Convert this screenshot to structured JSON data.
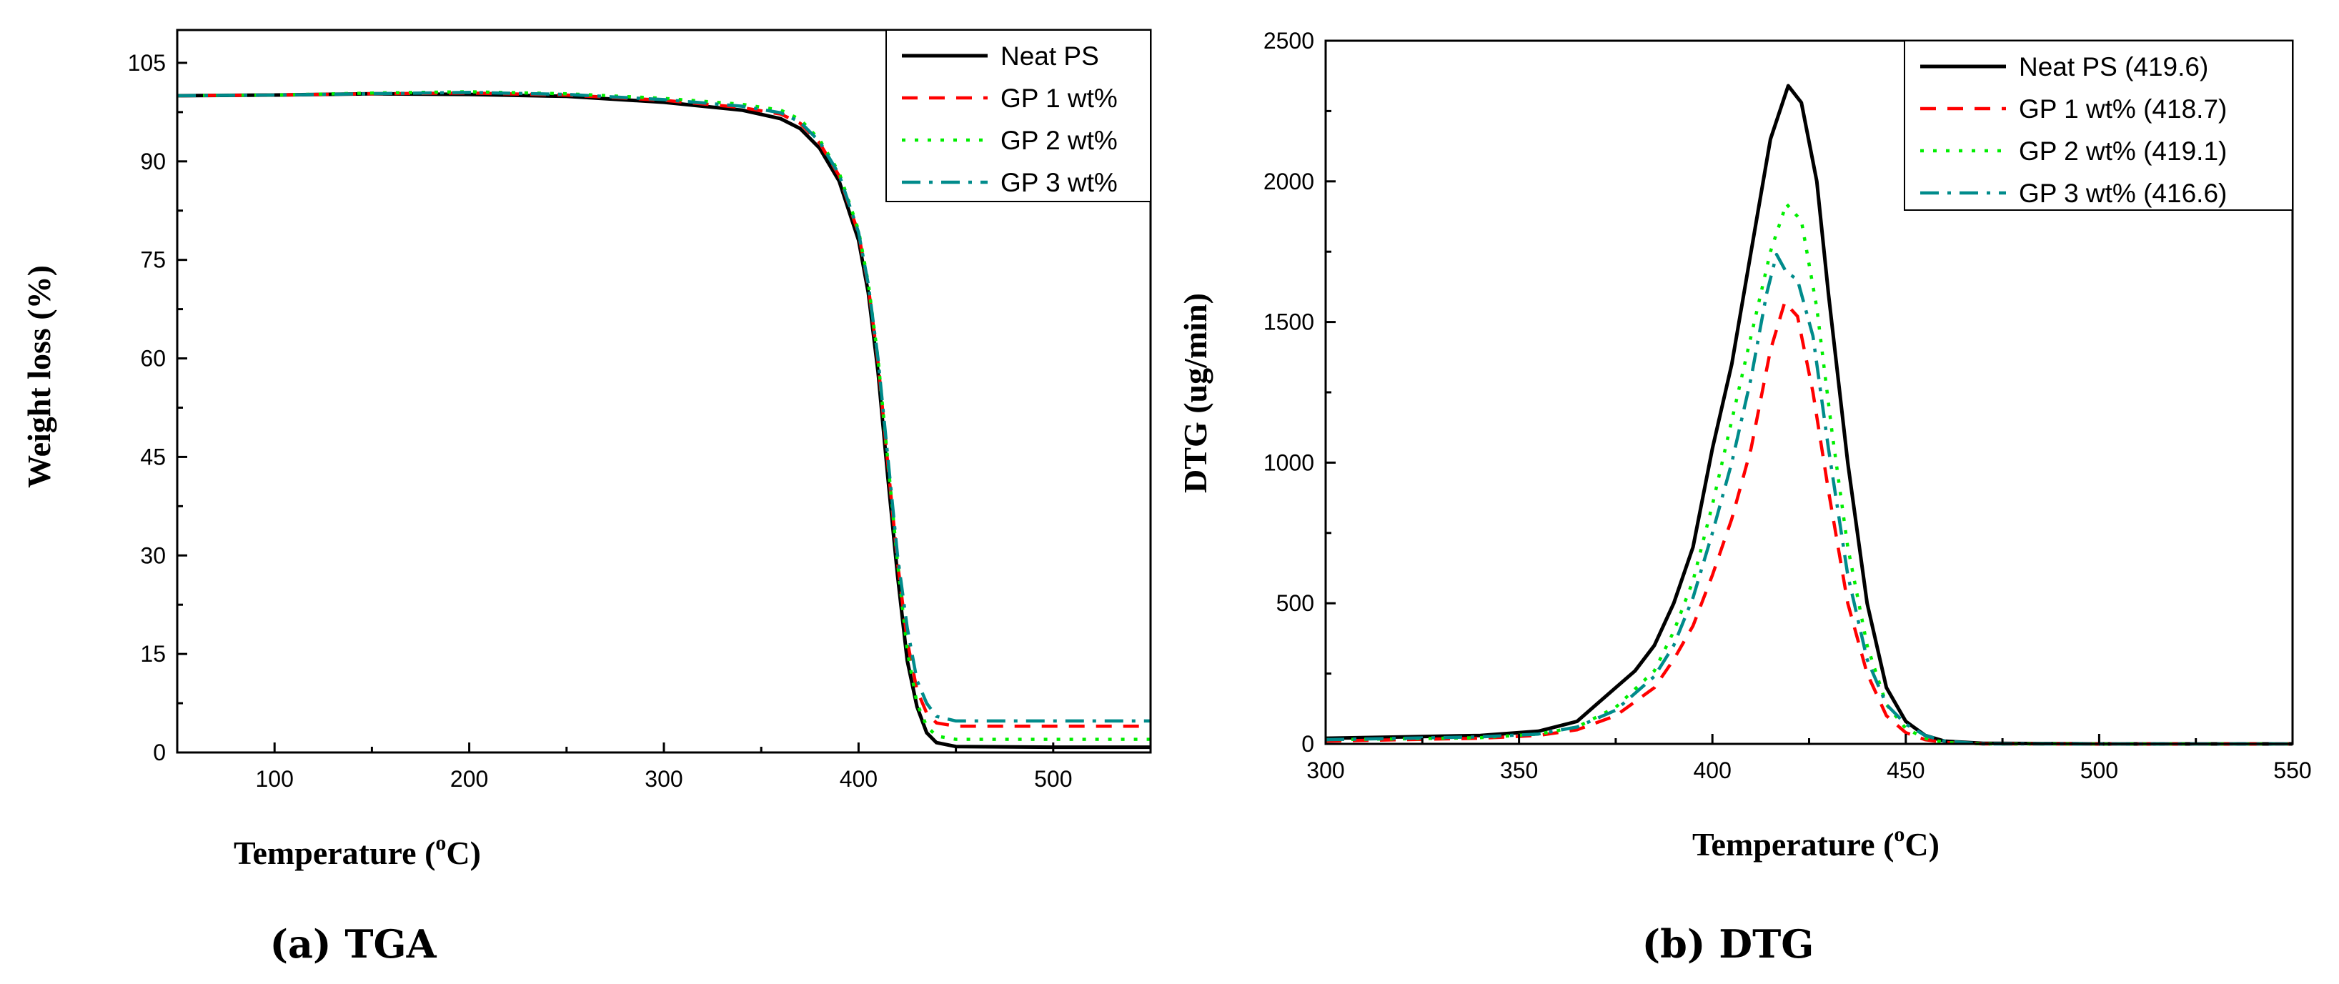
{
  "chart_data": [
    {
      "id": "tga",
      "type": "line",
      "caption": "(a) TGA",
      "xlabel_main": "Temperature (",
      "xlabel_sup": "o",
      "xlabel_end": "C)",
      "ylabel": "Weight loss (%)",
      "xlim": [
        50,
        550
      ],
      "ylim": [
        0,
        110
      ],
      "xticks": [
        100,
        200,
        300,
        400,
        500
      ],
      "yticks": [
        0,
        15,
        30,
        45,
        60,
        75,
        90,
        105
      ],
      "legend_position": "top-right",
      "series": [
        {
          "name": "Neat PS",
          "color": "#000000",
          "dash": "solid",
          "points": [
            [
              50,
              100
            ],
            [
              100,
              100.1
            ],
            [
              150,
              100.3
            ],
            [
              200,
              100.2
            ],
            [
              250,
              99.9
            ],
            [
              300,
              99.0
            ],
            [
              340,
              97.8
            ],
            [
              360,
              96.5
            ],
            [
              370,
              95.0
            ],
            [
              380,
              92.0
            ],
            [
              390,
              87.0
            ],
            [
              400,
              78.0
            ],
            [
              405,
              70.0
            ],
            [
              410,
              58.0
            ],
            [
              415,
              42.0
            ],
            [
              420,
              27.0
            ],
            [
              425,
              14.0
            ],
            [
              430,
              7.0
            ],
            [
              435,
              3.0
            ],
            [
              440,
              1.5
            ],
            [
              450,
              0.9
            ],
            [
              500,
              0.8
            ],
            [
              550,
              0.8
            ]
          ]
        },
        {
          "name": "GP 1 wt%",
          "color": "#ff0000",
          "dash": "dash",
          "points": [
            [
              50,
              100
            ],
            [
              100,
              100.1
            ],
            [
              150,
              100.3
            ],
            [
              200,
              100.4
            ],
            [
              250,
              100.1
            ],
            [
              300,
              99.3
            ],
            [
              340,
              98.2
            ],
            [
              360,
              97.2
            ],
            [
              370,
              95.8
            ],
            [
              380,
              92.8
            ],
            [
              390,
              87.8
            ],
            [
              400,
              79.0
            ],
            [
              405,
              71.0
            ],
            [
              410,
              59.5
            ],
            [
              415,
              44.0
            ],
            [
              420,
              29.0
            ],
            [
              425,
              17.0
            ],
            [
              430,
              9.5
            ],
            [
              435,
              6.0
            ],
            [
              440,
              4.5
            ],
            [
              450,
              4.0
            ],
            [
              500,
              4.0
            ],
            [
              550,
              4.0
            ]
          ]
        },
        {
          "name": "GP 2 wt%",
          "color": "#00ee00",
          "dash": "dot",
          "points": [
            [
              50,
              100
            ],
            [
              100,
              100.1
            ],
            [
              150,
              100.4
            ],
            [
              200,
              100.6
            ],
            [
              250,
              100.3
            ],
            [
              300,
              99.6
            ],
            [
              340,
              98.7
            ],
            [
              360,
              97.8
            ],
            [
              370,
              96.4
            ],
            [
              380,
              93.3
            ],
            [
              390,
              88.3
            ],
            [
              400,
              79.5
            ],
            [
              405,
              71.5
            ],
            [
              410,
              60.0
            ],
            [
              415,
              44.5
            ],
            [
              420,
              29.0
            ],
            [
              425,
              15.5
            ],
            [
              430,
              7.5
            ],
            [
              435,
              4.0
            ],
            [
              440,
              2.5
            ],
            [
              450,
              2.0
            ],
            [
              500,
              2.0
            ],
            [
              550,
              2.0
            ]
          ]
        },
        {
          "name": "GP 3 wt%",
          "color": "#008b8b",
          "dash": "dashdot",
          "points": [
            [
              50,
              100
            ],
            [
              100,
              100.1
            ],
            [
              150,
              100.3
            ],
            [
              200,
              100.5
            ],
            [
              250,
              100.2
            ],
            [
              300,
              99.4
            ],
            [
              340,
              98.4
            ],
            [
              360,
              97.4
            ],
            [
              370,
              96.0
            ],
            [
              380,
              93.0
            ],
            [
              390,
              88.0
            ],
            [
              400,
              79.2
            ],
            [
              405,
              71.3
            ],
            [
              410,
              60.0
            ],
            [
              415,
              45.0
            ],
            [
              420,
              30.0
            ],
            [
              425,
              19.0
            ],
            [
              430,
              11.0
            ],
            [
              435,
              7.5
            ],
            [
              440,
              5.5
            ],
            [
              450,
              4.8
            ],
            [
              500,
              4.8
            ],
            [
              550,
              4.8
            ]
          ]
        }
      ]
    },
    {
      "id": "dtg",
      "type": "line",
      "caption": "(b) DTG",
      "xlabel_main": "Temperature (",
      "xlabel_sup": "o",
      "xlabel_end": "C)",
      "ylabel": "DTG (ug/min)",
      "xlim": [
        300,
        550
      ],
      "ylim": [
        0,
        2500
      ],
      "xticks": [
        300,
        350,
        400,
        450,
        500,
        550
      ],
      "yticks": [
        0,
        500,
        1000,
        1500,
        2000,
        2500
      ],
      "legend_position": "top-right",
      "series": [
        {
          "name": "Neat PS (419.6)",
          "color": "#000000",
          "dash": "solid",
          "points": [
            [
              300,
              20
            ],
            [
              320,
              25
            ],
            [
              340,
              30
            ],
            [
              355,
              45
            ],
            [
              365,
              80
            ],
            [
              370,
              140
            ],
            [
              375,
              200
            ],
            [
              380,
              260
            ],
            [
              385,
              350
            ],
            [
              390,
              500
            ],
            [
              395,
              700
            ],
            [
              400,
              1050
            ],
            [
              405,
              1350
            ],
            [
              410,
              1750
            ],
            [
              415,
              2150
            ],
            [
              419.6,
              2340
            ],
            [
              423,
              2280
            ],
            [
              427,
              2000
            ],
            [
              430,
              1600
            ],
            [
              435,
              1000
            ],
            [
              440,
              500
            ],
            [
              445,
              200
            ],
            [
              450,
              80
            ],
            [
              455,
              30
            ],
            [
              460,
              10
            ],
            [
              470,
              2
            ],
            [
              500,
              0
            ],
            [
              550,
              0
            ]
          ]
        },
        {
          "name": "GP 1 wt%  (418.7)",
          "color": "#ff0000",
          "dash": "dash",
          "points": [
            [
              300,
              10
            ],
            [
              320,
              15
            ],
            [
              340,
              20
            ],
            [
              355,
              30
            ],
            [
              365,
              50
            ],
            [
              375,
              100
            ],
            [
              385,
              200
            ],
            [
              390,
              300
            ],
            [
              395,
              420
            ],
            [
              400,
              600
            ],
            [
              405,
              800
            ],
            [
              410,
              1050
            ],
            [
              415,
              1400
            ],
            [
              418.7,
              1570
            ],
            [
              422,
              1520
            ],
            [
              426,
              1250
            ],
            [
              430,
              900
            ],
            [
              435,
              500
            ],
            [
              440,
              250
            ],
            [
              445,
              100
            ],
            [
              450,
              40
            ],
            [
              455,
              15
            ],
            [
              460,
              5
            ],
            [
              470,
              0
            ],
            [
              550,
              0
            ]
          ]
        },
        {
          "name": "GP 2 wt%  (419.1)",
          "color": "#00ee00",
          "dash": "dot",
          "points": [
            [
              300,
              15
            ],
            [
              320,
              18
            ],
            [
              340,
              22
            ],
            [
              355,
              35
            ],
            [
              365,
              60
            ],
            [
              375,
              130
            ],
            [
              385,
              260
            ],
            [
              390,
              400
            ],
            [
              395,
              580
            ],
            [
              400,
              850
            ],
            [
              405,
              1150
            ],
            [
              410,
              1450
            ],
            [
              415,
              1750
            ],
            [
              419.1,
              1920
            ],
            [
              423,
              1860
            ],
            [
              427,
              1550
            ],
            [
              431,
              1100
            ],
            [
              435,
              700
            ],
            [
              440,
              350
            ],
            [
              445,
              140
            ],
            [
              450,
              55
            ],
            [
              455,
              20
            ],
            [
              460,
              5
            ],
            [
              470,
              0
            ],
            [
              550,
              0
            ]
          ]
        },
        {
          "name": "GP 3 wt%  (416.6)",
          "color": "#008b8b",
          "dash": "dashdot",
          "points": [
            [
              300,
              15
            ],
            [
              320,
              20
            ],
            [
              340,
              25
            ],
            [
              355,
              35
            ],
            [
              365,
              60
            ],
            [
              375,
              120
            ],
            [
              385,
              240
            ],
            [
              390,
              350
            ],
            [
              395,
              520
            ],
            [
              400,
              750
            ],
            [
              405,
              1000
            ],
            [
              410,
              1300
            ],
            [
              414,
              1600
            ],
            [
              416.6,
              1740
            ],
            [
              419,
              1680
            ],
            [
              422,
              1650
            ],
            [
              426,
              1450
            ],
            [
              430,
              1050
            ],
            [
              435,
              600
            ],
            [
              440,
              300
            ],
            [
              445,
              140
            ],
            [
              450,
              70
            ],
            [
              455,
              30
            ],
            [
              460,
              10
            ],
            [
              470,
              0
            ],
            [
              550,
              0
            ]
          ]
        }
      ]
    }
  ]
}
